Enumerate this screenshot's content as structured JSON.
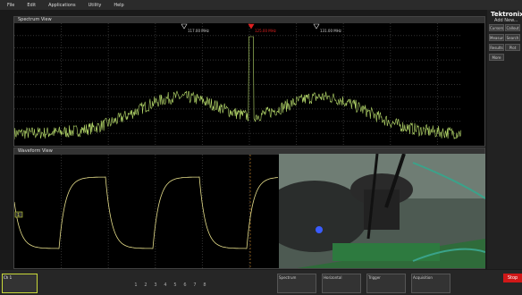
{
  "menu": [
    "File",
    "Edit",
    "Applications",
    "Utility",
    "Help"
  ],
  "spectrum_view": {
    "title": "Spectrum View",
    "markers": [
      "117.00 MHz",
      "125.00 MHz",
      "131.00 MHz"
    ]
  },
  "waveform_view": {
    "title": "Waveform View",
    "channel_label": "1"
  },
  "side_panel": {
    "brand": "Tektronix",
    "add_new": "Add New...",
    "buttons": [
      "Cursors",
      "Callout",
      "Measure",
      "Search",
      "Results Table",
      "Plot",
      "More"
    ]
  },
  "bottom_bar": {
    "channel": "Ch 1",
    "channel_buttons": [
      "1",
      "2",
      "3",
      "4",
      "5",
      "6",
      "7",
      "8"
    ],
    "panels": [
      "Spectrum",
      "Horizontal",
      "Trigger",
      "Acquisition"
    ],
    "stop": "Stop"
  }
}
